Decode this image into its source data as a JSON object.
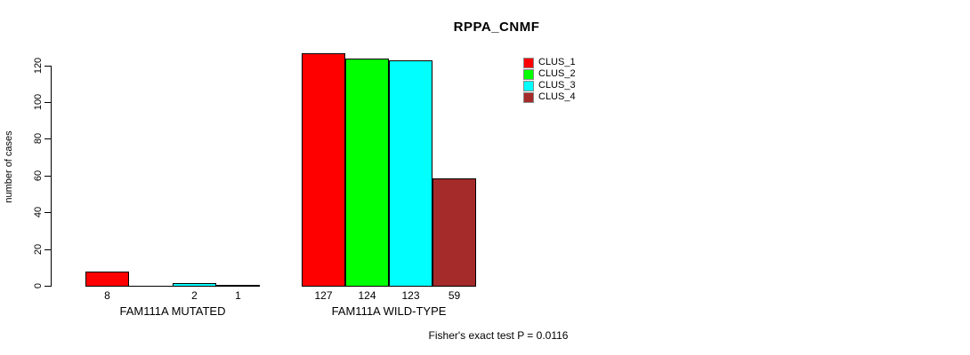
{
  "chart_data": {
    "type": "bar",
    "title": "RPPA_CNMF",
    "ylabel": "number of cases",
    "xlabel": "",
    "caption": "Fisher's exact test P = 0.0116",
    "categories": [
      "FAM111A MUTATED",
      "FAM111A WILD-TYPE"
    ],
    "series": [
      {
        "name": "CLUS_1",
        "color": "#ff0000",
        "values": [
          8,
          127
        ]
      },
      {
        "name": "CLUS_2",
        "color": "#00ff00",
        "values": [
          0,
          124
        ]
      },
      {
        "name": "CLUS_3",
        "color": "#00ffff",
        "values": [
          2,
          123
        ]
      },
      {
        "name": "CLUS_4",
        "color": "#a52a2a",
        "values": [
          1,
          59
        ]
      }
    ],
    "yticks": [
      0,
      20,
      40,
      60,
      80,
      100,
      120
    ],
    "ylim": [
      0,
      127
    ],
    "grid": false,
    "bar_border_color": "#000000",
    "background": "#ffffff",
    "value_labels": {
      "show": true,
      "hide_zero": true
    },
    "legend_position": "top-right-inside"
  }
}
